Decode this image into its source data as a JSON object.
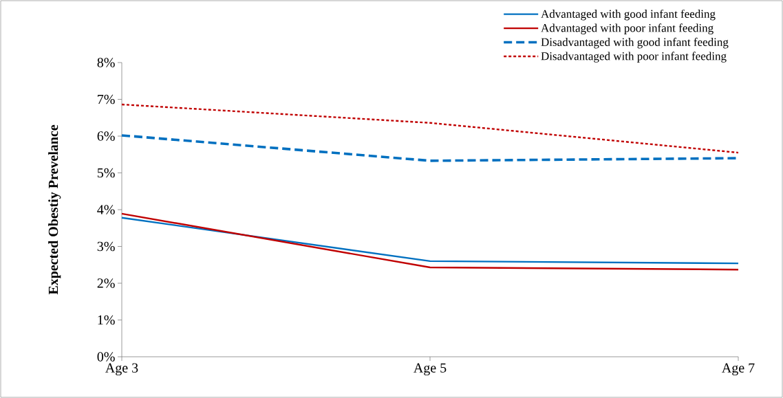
{
  "chart_data": {
    "type": "line",
    "ylabel": "Expected Obestiy Prevelance",
    "categories": [
      "Age 3",
      "Age 5",
      "Age 7"
    ],
    "ylim": [
      0,
      8
    ],
    "yticks": [
      {
        "value": 0,
        "label": "0%"
      },
      {
        "value": 1,
        "label": "1%"
      },
      {
        "value": 2,
        "label": "2%"
      },
      {
        "value": 3,
        "label": "3%"
      },
      {
        "value": 4,
        "label": "4%"
      },
      {
        "value": 5,
        "label": "5%"
      },
      {
        "value": 6,
        "label": "6%"
      },
      {
        "value": 7,
        "label": "7%"
      },
      {
        "value": 8,
        "label": "8%"
      }
    ],
    "grid": false,
    "legend": "top right",
    "marker": "none",
    "series": [
      {
        "name": "Advantaged with good infant feeding",
        "color": "#0070c0",
        "line_style": "solid",
        "values": [
          3.78,
          2.6,
          2.54
        ]
      },
      {
        "name": "Advantaged with poor infant feeding",
        "color": "#c00000",
        "line_style": "solid",
        "values": [
          3.89,
          2.43,
          2.37
        ]
      },
      {
        "name": "Disadvantaged with good infant feeding",
        "color": "#0070c0",
        "line_style": "dashed",
        "values": [
          6.02,
          5.33,
          5.4
        ]
      },
      {
        "name": "Disadvantaged with poor infant feeding",
        "color": "#c00000",
        "line_style": "dotted",
        "values": [
          6.86,
          6.36,
          5.55
        ]
      }
    ]
  }
}
